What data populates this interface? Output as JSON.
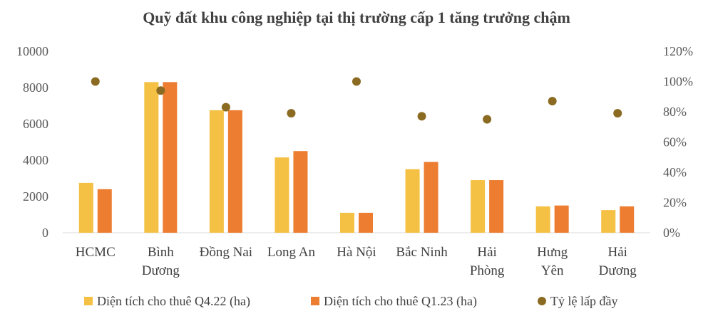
{
  "chart_data": {
    "type": "bar",
    "title": "Quỹ đất khu công nghiệp tại thị trường cấp 1 tăng trưởng chậm",
    "categories": [
      [
        "HCMC"
      ],
      [
        "Bình",
        "Dương"
      ],
      [
        "Đồng Nai"
      ],
      [
        "Long An"
      ],
      [
        "Hà Nội"
      ],
      [
        "Bắc Ninh"
      ],
      [
        "Hải",
        "Phòng"
      ],
      [
        "Hưng",
        "Yên"
      ],
      [
        "Hải",
        "Dương"
      ]
    ],
    "series": [
      {
        "name": "Diện tích cho thuê Q4.22 (ha)",
        "type": "bar",
        "axis": "left",
        "color": "#F4C144",
        "values": [
          2750,
          8300,
          6750,
          4150,
          1100,
          3500,
          2900,
          1450,
          1250
        ]
      },
      {
        "name": "Diện tích cho thuê Q1.23 (ha)",
        "type": "bar",
        "axis": "left",
        "color": "#ED7D31",
        "values": [
          2400,
          8300,
          6750,
          4500,
          1100,
          3900,
          2900,
          1500,
          1450
        ]
      },
      {
        "name": "Tỷ lệ lấp đầy",
        "type": "scatter",
        "axis": "right",
        "color": "#8B6B22",
        "values": [
          1.0,
          0.94,
          0.83,
          0.79,
          1.0,
          0.77,
          0.75,
          0.87,
          0.79
        ]
      }
    ],
    "y_left": {
      "ylim": [
        0,
        10000
      ],
      "ticks": [
        "0",
        "2000",
        "4000",
        "6000",
        "8000",
        "10000"
      ]
    },
    "y_right": {
      "ylim": [
        0,
        1.2
      ],
      "ticks": [
        "0%",
        "20%",
        "40%",
        "60%",
        "80%",
        "100%",
        "120%"
      ]
    },
    "grid": false,
    "legend": "bottom"
  }
}
